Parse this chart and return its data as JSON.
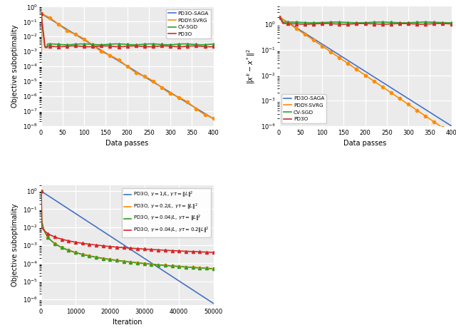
{
  "top_left": {
    "xlabel": "Data passes",
    "ylabel": "Objective suboptimality",
    "xlim": [
      0,
      400
    ],
    "ylim": [
      1e-08,
      1.0
    ],
    "series": [
      {
        "label": "PD3O-SAGA",
        "color": "#4472C4",
        "marker": null,
        "lw": 1.2
      },
      {
        "label": "PDDY-SVRG",
        "color": "#FF8C00",
        "marker": "o",
        "ms": 3,
        "lw": 1.2
      },
      {
        "label": "CV-SGD",
        "color": "#2CA02C",
        "marker": "^",
        "ms": 3,
        "lw": 1.2
      },
      {
        "label": "PD3O",
        "color": "#D62728",
        "marker": "^",
        "ms": 3,
        "lw": 1.2
      }
    ]
  },
  "top_right": {
    "xlabel": "Data passes",
    "ylabel": "$\\|x^k - x^*\\|^2$",
    "xlim": [
      0,
      400
    ],
    "ylim": [
      0.0001,
      5.0
    ],
    "series": [
      {
        "label": "PD3O-SAGA",
        "color": "#4472C4",
        "marker": null,
        "lw": 1.2
      },
      {
        "label": "PDDY-SVRG",
        "color": "#FF8C00",
        "marker": "o",
        "ms": 3,
        "lw": 1.2
      },
      {
        "label": "CV-SGD",
        "color": "#2CA02C",
        "marker": "^",
        "ms": 3,
        "lw": 1.2
      },
      {
        "label": "PD3O",
        "color": "#D62728",
        "marker": "^",
        "ms": 3,
        "lw": 1.2
      }
    ]
  },
  "bottom": {
    "xlabel": "Iteration",
    "ylabel": "Objective suboptimality",
    "xlim": [
      0,
      50000
    ],
    "ylim": [
      5e-07,
      2.0
    ],
    "series": [
      {
        "label": "PD3O, $\\gamma = 1/L$, $\\gamma\\tau = \\|L\\|^2$",
        "color": "#4472C4",
        "marker": null,
        "ms": 3,
        "lw": 1.2
      },
      {
        "label": "PD3O, $\\gamma = 0.2/L$, $\\gamma\\tau = \\|L\\|^2$",
        "color": "#FF8C00",
        "marker": "o",
        "ms": 3,
        "lw": 1.2
      },
      {
        "label": "PD3O, $\\gamma = 0.04/L$, $\\gamma\\tau = \\|L\\|^2$",
        "color": "#2CA02C",
        "marker": "^",
        "ms": 3,
        "lw": 1.2
      },
      {
        "label": "PD3O, $\\gamma = 0.04/L$, $\\gamma\\tau = 0.2\\|L\\|^2$",
        "color": "#D62728",
        "marker": "^",
        "ms": 3,
        "lw": 1.2
      }
    ]
  },
  "bg_color": "#ebebeb",
  "grid_color": "white"
}
